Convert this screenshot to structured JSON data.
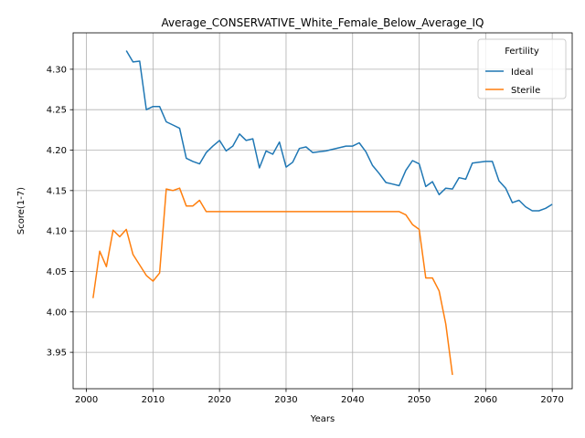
{
  "chart_data": {
    "type": "line",
    "title": "Average_CONSERVATIVE_White_Female_Below_Average_IQ",
    "xlabel": "Years",
    "ylabel": "Score(1-7)",
    "xlim": [
      1998,
      2073
    ],
    "ylim": [
      3.905,
      4.345
    ],
    "x_ticks": [
      2000,
      2010,
      2020,
      2030,
      2040,
      2050,
      2060,
      2070
    ],
    "y_ticks": [
      3.95,
      4.0,
      4.05,
      4.1,
      4.15,
      4.2,
      4.25,
      4.3
    ],
    "y_tick_labels": [
      "3.95",
      "4.00",
      "4.05",
      "4.10",
      "4.15",
      "4.20",
      "4.25",
      "4.30"
    ],
    "grid": true,
    "legend": {
      "title": "Fertility",
      "placement": "top-right"
    },
    "series": [
      {
        "name": "Ideal",
        "color": "#1f77b4",
        "x": [
          2006,
          2007,
          2008,
          2009,
          2010,
          2011,
          2012,
          2013,
          2014,
          2015,
          2016,
          2017,
          2018,
          2019,
          2020,
          2021,
          2022,
          2023,
          2024,
          2025,
          2026,
          2027,
          2028,
          2029,
          2030,
          2031,
          2032,
          2033,
          2034,
          2035,
          2036,
          2037,
          2038,
          2039,
          2040,
          2041,
          2042,
          2043,
          2044,
          2045,
          2046,
          2047,
          2048,
          2049,
          2050,
          2051,
          2052,
          2053,
          2054,
          2055,
          2056,
          2057,
          2058,
          2059,
          2060,
          2061,
          2062,
          2063,
          2064,
          2065,
          2066,
          2067,
          2068,
          2069,
          2070
        ],
        "y": [
          4.323,
          4.309,
          4.31,
          4.25,
          4.254,
          4.254,
          4.235,
          4.231,
          4.227,
          4.19,
          4.186,
          4.183,
          4.197,
          4.205,
          4.212,
          4.199,
          4.205,
          4.22,
          4.212,
          4.214,
          4.178,
          4.199,
          4.195,
          4.21,
          4.179,
          4.185,
          4.202,
          4.204,
          4.197,
          4.198,
          4.199,
          4.201,
          4.203,
          4.205,
          4.205,
          4.209,
          4.198,
          4.181,
          4.171,
          4.16,
          4.158,
          4.156,
          4.175,
          4.187,
          4.183,
          4.155,
          4.161,
          4.145,
          4.153,
          4.152,
          4.166,
          4.164,
          4.184,
          4.185,
          4.186,
          4.186,
          4.162,
          4.153,
          4.135,
          4.138,
          4.13,
          4.125,
          4.125,
          4.128,
          4.133
        ]
      },
      {
        "name": "Sterile",
        "color": "#ff7f0e",
        "x": [
          2001,
          2002,
          2003,
          2004,
          2005,
          2006,
          2007,
          2008,
          2009,
          2010,
          2011,
          2012,
          2013,
          2014,
          2015,
          2016,
          2017,
          2018,
          2019,
          2020,
          2021,
          2022,
          2023,
          2024,
          2025,
          2026,
          2027,
          2028,
          2029,
          2030,
          2031,
          2032,
          2033,
          2034,
          2035,
          2036,
          2037,
          2038,
          2039,
          2040,
          2041,
          2042,
          2043,
          2044,
          2045,
          2046,
          2047,
          2048,
          2049,
          2050,
          2051,
          2052,
          2053,
          2054,
          2055
        ],
        "y": [
          4.017,
          4.075,
          4.056,
          4.101,
          4.093,
          4.102,
          4.071,
          4.058,
          4.045,
          4.038,
          4.048,
          4.152,
          4.15,
          4.153,
          4.131,
          4.131,
          4.138,
          4.124,
          4.124,
          4.124,
          4.124,
          4.124,
          4.124,
          4.124,
          4.124,
          4.124,
          4.124,
          4.124,
          4.124,
          4.124,
          4.124,
          4.124,
          4.124,
          4.124,
          4.124,
          4.124,
          4.124,
          4.124,
          4.124,
          4.124,
          4.124,
          4.124,
          4.124,
          4.124,
          4.124,
          4.124,
          4.124,
          4.12,
          4.108,
          4.102,
          4.042,
          4.042,
          4.026,
          3.985,
          3.922
        ]
      }
    ]
  }
}
